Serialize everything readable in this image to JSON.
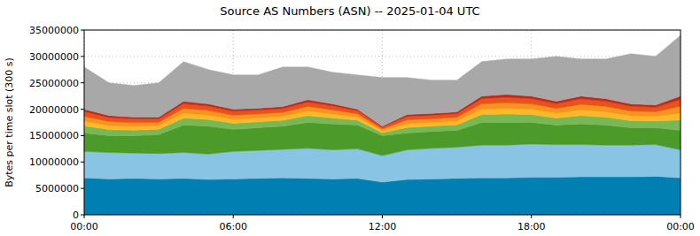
{
  "chart_data": {
    "type": "area",
    "stacked": true,
    "grid": true,
    "title": "Source AS Numbers (ASN) -- 2025-01-04 UTC",
    "y_label": "Bytes per time slot (300 s)",
    "x": [
      0,
      1,
      2,
      3,
      4,
      5,
      6,
      7,
      8,
      9,
      10,
      11,
      12,
      13,
      14,
      15,
      16,
      17,
      18,
      19,
      20,
      21,
      22,
      23,
      24
    ],
    "xlim": [
      0,
      24
    ],
    "xticks": [
      {
        "value": 0,
        "label": "00:00"
      },
      {
        "value": 6,
        "label": "06:00"
      },
      {
        "value": 12,
        "label": "12:00"
      },
      {
        "value": 18,
        "label": "18:00"
      },
      {
        "value": 24,
        "label": "00:00"
      }
    ],
    "ylim": [
      0,
      35000000
    ],
    "yticks": [
      0,
      5000000,
      10000000,
      15000000,
      20000000,
      25000000,
      30000000,
      35000000
    ],
    "series": [
      {
        "color": "#0080b2",
        "values": [
          7000000,
          6800000,
          6900000,
          6800000,
          6900000,
          6700000,
          6800000,
          6900000,
          7000000,
          6900000,
          6800000,
          6900000,
          6200000,
          6700000,
          6800000,
          6900000,
          7000000,
          7000000,
          7100000,
          7100000,
          7200000,
          7200000,
          7200000,
          7300000,
          7000000
        ]
      },
      {
        "color": "#8ac4e4",
        "values": [
          5000000,
          5000000,
          4800000,
          4800000,
          4900000,
          4800000,
          5200000,
          5300000,
          5400000,
          5700000,
          5500000,
          5600000,
          5000000,
          5600000,
          5800000,
          5900000,
          6200000,
          6200000,
          6300000,
          6200000,
          6100000,
          6000000,
          6000000,
          6000000,
          5300000
        ]
      },
      {
        "color": "#4c9a2a",
        "values": [
          3500000,
          3200000,
          3300000,
          3600000,
          5200000,
          5300000,
          4200000,
          4300000,
          4400000,
          4900000,
          4900000,
          4500000,
          3800000,
          3200000,
          3200000,
          3200000,
          4300000,
          4300000,
          4100000,
          3700000,
          3900000,
          3800000,
          3300000,
          3200000,
          3700000
        ]
      },
      {
        "color": "#78b854",
        "values": [
          1350000,
          1140000,
          1050000,
          990000,
          1350000,
          1260000,
          1140000,
          1110000,
          1110000,
          1290000,
          1140000,
          900000,
          540000,
          1050000,
          1020000,
          1050000,
          1500000,
          1590000,
          1500000,
          1350000,
          1590000,
          1500000,
          1350000,
          1290000,
          1950000
        ]
      },
      {
        "color": "#fdb827",
        "values": [
          900000,
          760000,
          700000,
          660000,
          900000,
          840000,
          760000,
          740000,
          740000,
          860000,
          760000,
          600000,
          360000,
          700000,
          680000,
          700000,
          1000000,
          1060000,
          1000000,
          900000,
          1060000,
          1000000,
          900000,
          860000,
          1300000
        ]
      },
      {
        "color": "#f7941d",
        "values": [
          900000,
          760000,
          700000,
          660000,
          900000,
          840000,
          760000,
          740000,
          740000,
          860000,
          760000,
          600000,
          360000,
          700000,
          680000,
          700000,
          1000000,
          1060000,
          1000000,
          900000,
          1060000,
          1000000,
          900000,
          860000,
          1300000
        ]
      },
      {
        "color": "#e8531c",
        "values": [
          900000,
          760000,
          700000,
          660000,
          900000,
          840000,
          760000,
          740000,
          740000,
          860000,
          760000,
          600000,
          360000,
          700000,
          680000,
          700000,
          1000000,
          1060000,
          1000000,
          900000,
          1060000,
          1000000,
          900000,
          860000,
          1300000
        ]
      },
      {
        "color": "#c0281c",
        "values": [
          450000,
          380000,
          350000,
          330000,
          450000,
          420000,
          380000,
          370000,
          370000,
          430000,
          380000,
          300000,
          180000,
          350000,
          340000,
          350000,
          500000,
          530000,
          500000,
          450000,
          530000,
          500000,
          450000,
          430000,
          650000
        ]
      },
      {
        "color": "#a8a8a8",
        "values": [
          8000000,
          6200000,
          6000000,
          6500000,
          7500000,
          6500000,
          6500000,
          6300000,
          7500000,
          6200000,
          6000000,
          6500000,
          9200000,
          7000000,
          6300000,
          6000000,
          6500000,
          6700000,
          7000000,
          8500000,
          7000000,
          7500000,
          9500000,
          9200000,
          11500000
        ]
      }
    ]
  }
}
